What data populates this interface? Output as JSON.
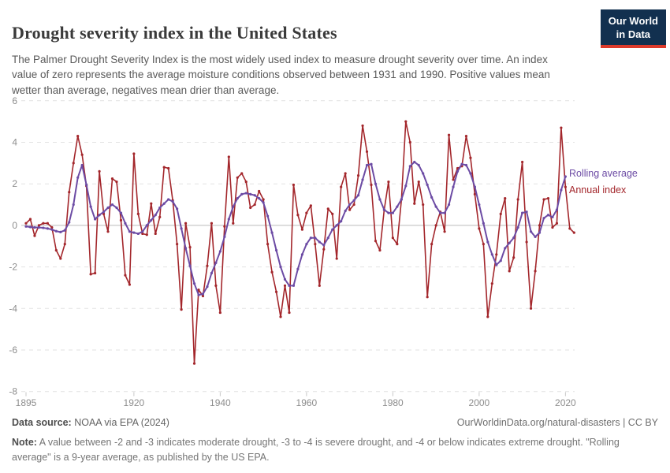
{
  "header": {
    "title": "Drought severity index in the United States",
    "subtitle": "The Palmer Drought Severity Index is the most widely used index to measure drought severity over time. An index value of zero represents the average moisture conditions observed between 1931 and 1990. Positive values mean wetter than average, negatives mean drier than average.",
    "logo": {
      "line1": "Our World",
      "line2": "in Data",
      "bg_color": "#12304f",
      "bar_color": "#dc3a2b"
    }
  },
  "footer": {
    "source_label": "Data source:",
    "source_value": " NOAA via EPA (2024)",
    "credit": "OurWorldinData.org/natural-disasters | CC BY",
    "note_label": "Note:",
    "note_text": " A value between -2 and -3 indicates moderate drought, -3 to -4 is severe drought, and -4 or below indicates extreme drought. \"Rolling average\" is a 9-year average, as published by the US EPA."
  },
  "chart_data": {
    "type": "line",
    "title": "Drought severity index in the United States",
    "xlabel": "",
    "ylabel": "",
    "xlim": [
      1895,
      2022
    ],
    "ylim": [
      -8,
      6
    ],
    "x_ticks": [
      1895,
      1920,
      1940,
      1960,
      1980,
      2000,
      2020
    ],
    "y_ticks": [
      6,
      4,
      2,
      0,
      -2,
      -4,
      -6,
      -8
    ],
    "grid": true,
    "zero_line": true,
    "legend_position": "right-of-line-ends",
    "series": [
      {
        "name": "Annual index",
        "color": "#a3262b",
        "start_year": 1895,
        "values": [
          0.1,
          0.3,
          -0.5,
          0.0,
          0.1,
          0.1,
          -0.1,
          -1.2,
          -1.6,
          -0.9,
          1.6,
          3.0,
          4.3,
          3.4,
          1.9,
          -2.35,
          -2.3,
          2.6,
          0.55,
          -0.3,
          2.25,
          2.1,
          0.25,
          -2.4,
          -2.85,
          3.45,
          0.55,
          -0.4,
          -0.45,
          1.05,
          -0.4,
          0.4,
          2.8,
          2.75,
          1.2,
          -0.9,
          -4.05,
          0.1,
          -1.05,
          -6.65,
          -3.1,
          -3.4,
          -1.95,
          0.1,
          -2.9,
          -4.2,
          -0.05,
          3.3,
          0.1,
          2.3,
          2.5,
          2.1,
          0.85,
          1.0,
          1.65,
          1.25,
          -0.9,
          -2.25,
          -3.2,
          -4.4,
          -2.9,
          -4.2,
          1.95,
          0.5,
          -0.2,
          0.6,
          0.95,
          -0.9,
          -2.9,
          -1.15,
          0.8,
          0.55,
          -1.6,
          1.85,
          2.5,
          0.75,
          1.0,
          2.4,
          4.8,
          3.55,
          1.95,
          -0.75,
          -1.2,
          0.75,
          2.1,
          -0.6,
          -0.9,
          1.25,
          5.0,
          4.0,
          1.05,
          2.1,
          1.0,
          -3.45,
          -0.9,
          0.0,
          0.65,
          -0.3,
          4.35,
          2.2,
          2.75,
          2.85,
          4.3,
          3.25,
          1.5,
          -0.15,
          -0.9,
          -4.4,
          -2.8,
          -1.4,
          0.55,
          1.3,
          -2.2,
          -1.55,
          1.25,
          3.05,
          -0.8,
          -4.0,
          -2.2,
          0.0,
          1.25,
          1.3,
          -0.1,
          0.1,
          4.7,
          1.85,
          -0.15,
          -0.35
        ]
      },
      {
        "name": "Rolling average",
        "color": "#6c4ba4",
        "start_year": 1895,
        "values": [
          -0.05,
          -0.08,
          -0.1,
          -0.1,
          -0.12,
          -0.15,
          -0.2,
          -0.28,
          -0.32,
          -0.24,
          0.15,
          1.0,
          2.3,
          2.9,
          1.95,
          0.9,
          0.3,
          0.5,
          0.65,
          0.85,
          1.0,
          0.85,
          0.6,
          0.1,
          -0.3,
          -0.35,
          -0.4,
          -0.3,
          0.0,
          0.25,
          0.5,
          0.85,
          1.05,
          1.25,
          1.15,
          0.8,
          -0.15,
          -1.1,
          -1.95,
          -2.8,
          -3.35,
          -3.3,
          -2.95,
          -2.3,
          -1.8,
          -1.25,
          -0.55,
          0.3,
          0.9,
          1.3,
          1.5,
          1.55,
          1.5,
          1.45,
          1.3,
          1.1,
          0.45,
          -0.35,
          -1.2,
          -2.0,
          -2.6,
          -2.9,
          -2.9,
          -2.1,
          -1.4,
          -0.9,
          -0.6,
          -0.6,
          -0.8,
          -0.95,
          -0.6,
          -0.2,
          0.0,
          0.2,
          0.7,
          1.0,
          1.2,
          1.45,
          2.2,
          2.9,
          2.95,
          2.0,
          1.25,
          0.75,
          0.6,
          0.6,
          0.9,
          1.25,
          1.9,
          2.85,
          3.05,
          2.9,
          2.5,
          1.95,
          1.35,
          0.9,
          0.6,
          0.6,
          1.0,
          1.85,
          2.6,
          2.95,
          2.9,
          2.5,
          1.85,
          1.0,
          0.1,
          -0.8,
          -1.4,
          -1.9,
          -1.7,
          -1.1,
          -0.85,
          -0.6,
          -0.1,
          0.6,
          0.65,
          -0.3,
          -0.55,
          -0.35,
          0.35,
          0.5,
          0.4,
          0.75,
          1.7,
          2.35
        ]
      }
    ]
  }
}
